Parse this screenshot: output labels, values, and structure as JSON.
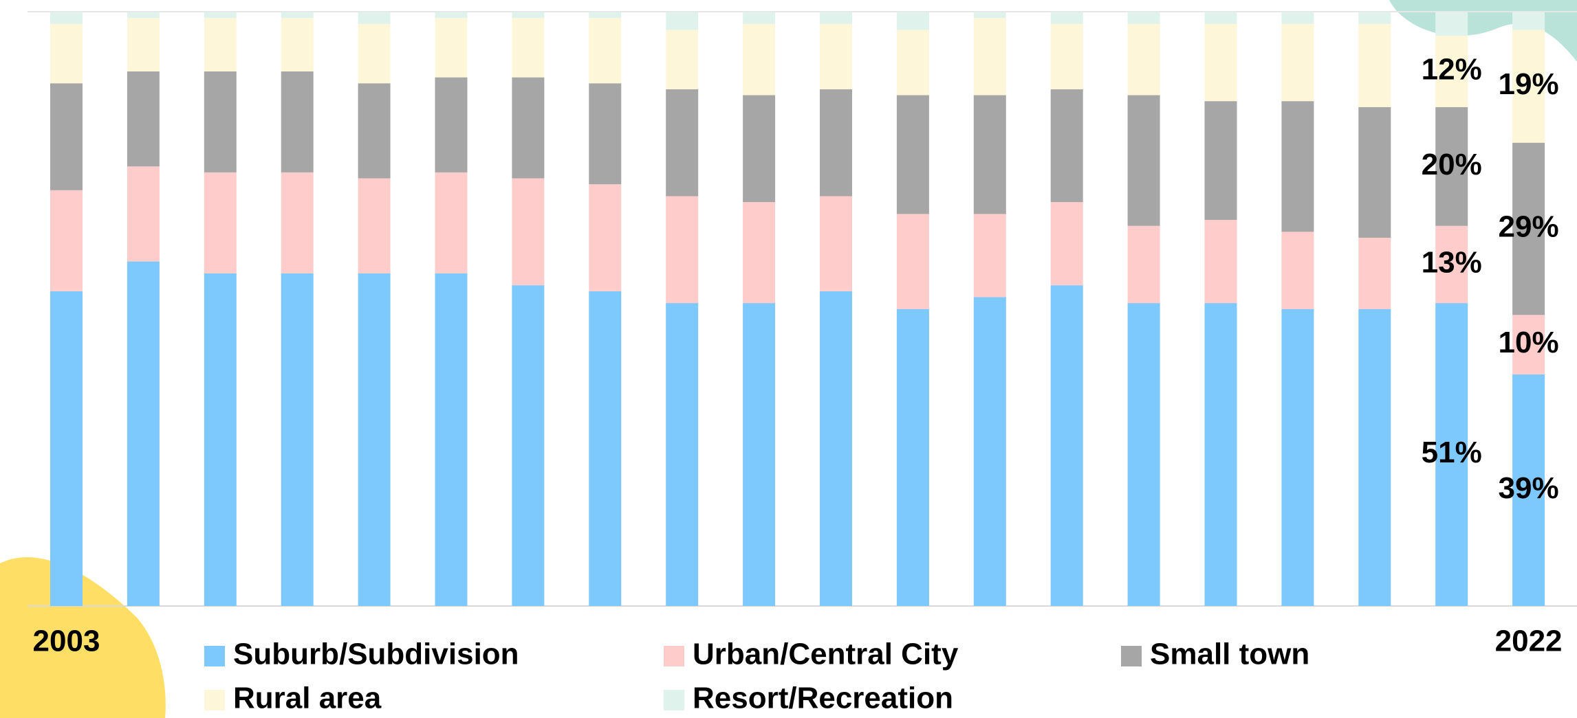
{
  "chart_data": {
    "type": "stacked_bar",
    "categories": [
      "2003",
      null,
      null,
      null,
      null,
      null,
      null,
      null,
      null,
      null,
      null,
      null,
      null,
      null,
      null,
      null,
      null,
      null,
      null,
      "2022"
    ],
    "ylim": [
      0,
      100
    ],
    "series": [
      {
        "name": "Suburb/Subdivision",
        "color": "#7dc8fc",
        "values": [
          53,
          58,
          56,
          56,
          56,
          56,
          54,
          53,
          51,
          51,
          53,
          50,
          52,
          54,
          51,
          51,
          50,
          50,
          51,
          39
        ],
        "value_labels": [
          null,
          null,
          null,
          null,
          null,
          null,
          null,
          null,
          null,
          null,
          null,
          null,
          null,
          null,
          null,
          null,
          null,
          null,
          "51%",
          "39%"
        ]
      },
      {
        "name": "Urban/Central City",
        "color": "#ffcccc",
        "values": [
          17,
          16,
          17,
          17,
          16,
          17,
          18,
          18,
          18,
          17,
          16,
          16,
          14,
          14,
          13,
          14,
          13,
          12,
          13,
          10
        ],
        "value_labels": [
          null,
          null,
          null,
          null,
          null,
          null,
          null,
          null,
          null,
          null,
          null,
          null,
          null,
          null,
          null,
          null,
          null,
          null,
          "13%",
          "10%"
        ]
      },
      {
        "name": "Small town",
        "color": "#a6a6a6",
        "values": [
          18,
          16,
          17,
          17,
          16,
          16,
          17,
          17,
          18,
          18,
          18,
          20,
          20,
          19,
          22,
          20,
          22,
          22,
          20,
          29
        ],
        "value_labels": [
          null,
          null,
          null,
          null,
          null,
          null,
          null,
          null,
          null,
          null,
          null,
          null,
          null,
          null,
          null,
          null,
          null,
          null,
          "20%",
          "29%"
        ]
      },
      {
        "name": "Rural area",
        "color": "#fdf6d8",
        "values": [
          10,
          9,
          9,
          9,
          10,
          10,
          10,
          11,
          10,
          12,
          11,
          11,
          13,
          11,
          12,
          13,
          13,
          14,
          12,
          19
        ],
        "value_labels": [
          null,
          null,
          null,
          null,
          null,
          null,
          null,
          null,
          null,
          null,
          null,
          null,
          null,
          null,
          null,
          null,
          null,
          null,
          "12%",
          "19%"
        ]
      },
      {
        "name": "Resort/Recreation",
        "color": "#dff3ec",
        "values": [
          2,
          1,
          1,
          1,
          2,
          1,
          1,
          1,
          3,
          2,
          2,
          3,
          1,
          2,
          2,
          2,
          2,
          2,
          4,
          3
        ]
      }
    ]
  }
}
